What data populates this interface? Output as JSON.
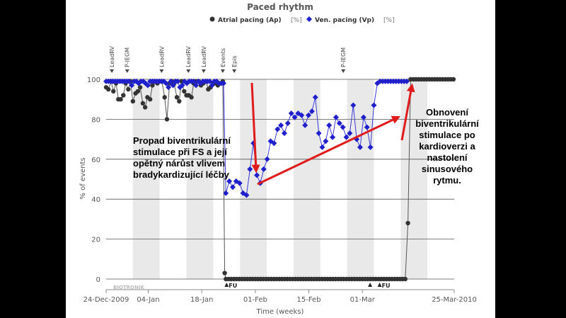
{
  "chart_data": {
    "type": "scatter",
    "title": "Paced rhythm",
    "ylabel": "% of events",
    "xlabel": "Time (weeks)",
    "ylim": [
      0,
      100
    ],
    "yticks": [
      0,
      20,
      40,
      60,
      80,
      100
    ],
    "x_start": "24-Dec-2009",
    "x_end": "25-Mar-2010",
    "x_ticks": [
      {
        "label": "24-Dec-2009",
        "day": 0
      },
      {
        "label": "04-Jan",
        "day": 11
      },
      {
        "label": "18-Jan",
        "day": 25
      },
      {
        "label": "01-Feb",
        "day": 39
      },
      {
        "label": "15-Feb",
        "day": 53
      },
      {
        "label": "01-Mar",
        "day": 67
      },
      {
        "label": "25-Mar-2010",
        "day": 91
      }
    ],
    "legend": {
      "placement": "top"
    },
    "series": [
      {
        "name": "Atrial pacing (Ap)",
        "unit": "[%]",
        "marker": "circle",
        "color": "#333333",
        "points": [
          [
            0.0,
            96
          ],
          [
            0.6,
            95
          ],
          [
            1.3,
            99
          ],
          [
            1.9,
            94
          ],
          [
            2.6,
            98
          ],
          [
            3.2,
            90
          ],
          [
            3.8,
            90
          ],
          [
            4.5,
            92
          ],
          [
            5.1,
            98
          ],
          [
            5.8,
            95
          ],
          [
            6.4,
            99
          ],
          [
            7.0,
            89
          ],
          [
            7.7,
            93
          ],
          [
            8.3,
            94
          ],
          [
            8.9,
            96
          ],
          [
            9.6,
            88
          ],
          [
            10.2,
            86
          ],
          [
            10.8,
            91
          ],
          [
            11.5,
            90
          ],
          [
            12.1,
            97
          ],
          [
            12.7,
            99
          ],
          [
            13.4,
            98
          ],
          [
            14.0,
            99
          ],
          [
            14.6,
            99
          ],
          [
            15.3,
            91
          ],
          [
            15.9,
            80
          ],
          [
            16.6,
            98
          ],
          [
            17.2,
            99
          ],
          [
            17.8,
            98
          ],
          [
            18.5,
            91
          ],
          [
            19.1,
            89
          ],
          [
            19.7,
            99
          ],
          [
            20.4,
            94
          ],
          [
            21.0,
            92
          ],
          [
            21.6,
            92
          ],
          [
            22.3,
            91
          ],
          [
            22.9,
            98
          ],
          [
            23.5,
            99
          ],
          [
            24.2,
            99
          ],
          [
            24.8,
            97
          ],
          [
            25.4,
            98
          ],
          [
            26.1,
            99
          ],
          [
            26.7,
            95
          ],
          [
            27.3,
            96
          ],
          [
            28.0,
            98
          ],
          [
            28.6,
            98
          ],
          [
            29.2,
            97
          ],
          [
            29.9,
            98
          ],
          [
            30.5,
            99
          ],
          [
            31.0,
            3
          ],
          [
            31.3,
            0
          ],
          [
            32.0,
            0
          ],
          [
            32.7,
            0
          ],
          [
            33.4,
            0
          ],
          [
            34.1,
            0
          ],
          [
            34.8,
            0
          ],
          [
            35.5,
            0
          ],
          [
            36.2,
            0
          ],
          [
            36.9,
            0
          ],
          [
            37.6,
            0
          ],
          [
            38.3,
            0
          ],
          [
            39.0,
            0
          ],
          [
            39.7,
            0
          ],
          [
            40.4,
            0
          ],
          [
            41.1,
            0
          ],
          [
            41.8,
            0
          ],
          [
            42.5,
            0
          ],
          [
            43.2,
            0
          ],
          [
            43.9,
            0
          ],
          [
            44.6,
            0
          ],
          [
            45.3,
            0
          ],
          [
            46.0,
            0
          ],
          [
            46.7,
            0
          ],
          [
            47.4,
            0
          ],
          [
            48.1,
            0
          ],
          [
            48.8,
            0
          ],
          [
            49.5,
            0
          ],
          [
            50.2,
            0
          ],
          [
            50.9,
            0
          ],
          [
            51.6,
            0
          ],
          [
            52.3,
            0
          ],
          [
            53.0,
            0
          ],
          [
            53.7,
            0
          ],
          [
            54.4,
            0
          ],
          [
            55.1,
            0
          ],
          [
            55.8,
            0
          ],
          [
            56.5,
            0
          ],
          [
            57.2,
            0
          ],
          [
            57.9,
            0
          ],
          [
            58.6,
            0
          ],
          [
            59.3,
            0
          ],
          [
            60.0,
            0
          ],
          [
            60.7,
            0
          ],
          [
            61.4,
            0
          ],
          [
            62.1,
            0
          ],
          [
            62.8,
            0
          ],
          [
            63.5,
            0
          ],
          [
            64.2,
            0
          ],
          [
            64.9,
            0
          ],
          [
            65.6,
            0
          ],
          [
            66.3,
            0
          ],
          [
            67.0,
            0
          ],
          [
            67.7,
            0
          ],
          [
            68.4,
            0
          ],
          [
            69.1,
            0
          ],
          [
            69.8,
            0
          ],
          [
            70.5,
            0
          ],
          [
            71.2,
            0
          ],
          [
            71.9,
            0
          ],
          [
            72.6,
            0
          ],
          [
            73.3,
            0
          ],
          [
            74.0,
            0
          ],
          [
            74.7,
            0
          ],
          [
            75.4,
            0
          ],
          [
            76.1,
            0
          ],
          [
            76.8,
            0
          ],
          [
            77.5,
            0
          ],
          [
            78.2,
            0
          ],
          [
            78.9,
            28
          ],
          [
            79.6,
            100
          ],
          [
            80.3,
            100
          ],
          [
            81.0,
            100
          ],
          [
            81.7,
            100
          ],
          [
            82.4,
            100
          ],
          [
            83.1,
            100
          ],
          [
            83.8,
            100
          ],
          [
            84.5,
            100
          ],
          [
            85.2,
            100
          ],
          [
            85.9,
            100
          ],
          [
            86.6,
            100
          ],
          [
            87.3,
            100
          ],
          [
            88.0,
            100
          ],
          [
            88.7,
            100
          ],
          [
            89.4,
            100
          ],
          [
            90.1,
            100
          ],
          [
            90.8,
            100
          ]
        ]
      },
      {
        "name": "Ven. pacing (Vp)",
        "unit": "[%]",
        "marker": "diamond",
        "color": "#1f1fcc",
        "points": [
          [
            0.0,
            99
          ],
          [
            0.6,
            99
          ],
          [
            1.2,
            99
          ],
          [
            1.8,
            99
          ],
          [
            2.4,
            99
          ],
          [
            3.0,
            99
          ],
          [
            3.6,
            99
          ],
          [
            4.2,
            99
          ],
          [
            4.8,
            99
          ],
          [
            5.4,
            99
          ],
          [
            6.0,
            99
          ],
          [
            6.7,
            97
          ],
          [
            7.3,
            99
          ],
          [
            7.9,
            99
          ],
          [
            8.5,
            98
          ],
          [
            9.1,
            99
          ],
          [
            9.7,
            99
          ],
          [
            10.3,
            98
          ],
          [
            10.9,
            97
          ],
          [
            11.5,
            99
          ],
          [
            12.1,
            99
          ],
          [
            12.7,
            99
          ],
          [
            13.3,
            99
          ],
          [
            13.9,
            99
          ],
          [
            14.5,
            99
          ],
          [
            15.1,
            99
          ],
          [
            15.7,
            98
          ],
          [
            16.3,
            96
          ],
          [
            16.9,
            99
          ],
          [
            17.5,
            97
          ],
          [
            18.1,
            99
          ],
          [
            18.7,
            99
          ],
          [
            19.3,
            96
          ],
          [
            19.9,
            97
          ],
          [
            20.5,
            99
          ],
          [
            21.1,
            98
          ],
          [
            21.7,
            99
          ],
          [
            22.3,
            99
          ],
          [
            22.9,
            99
          ],
          [
            23.5,
            97
          ],
          [
            24.1,
            99
          ],
          [
            24.7,
            98
          ],
          [
            25.3,
            99
          ],
          [
            25.9,
            99
          ],
          [
            26.5,
            99
          ],
          [
            27.1,
            99
          ],
          [
            27.7,
            97
          ],
          [
            28.3,
            99
          ],
          [
            28.9,
            99
          ],
          [
            29.5,
            98
          ],
          [
            30.1,
            98
          ],
          [
            30.7,
            98
          ],
          [
            31.3,
            43
          ],
          [
            32.2,
            49
          ],
          [
            33.1,
            46
          ],
          [
            34.0,
            49
          ],
          [
            34.9,
            48
          ],
          [
            35.8,
            43
          ],
          [
            36.7,
            42
          ],
          [
            37.6,
            55
          ],
          [
            38.5,
            68
          ],
          [
            39.4,
            52
          ],
          [
            40.3,
            48
          ],
          [
            41.2,
            55
          ],
          [
            42.1,
            60
          ],
          [
            43.0,
            69
          ],
          [
            43.9,
            68
          ],
          [
            44.8,
            75
          ],
          [
            45.7,
            77
          ],
          [
            46.6,
            73
          ],
          [
            47.5,
            78
          ],
          [
            48.4,
            83
          ],
          [
            49.3,
            81
          ],
          [
            50.2,
            83
          ],
          [
            51.1,
            82
          ],
          [
            52.0,
            77
          ],
          [
            52.9,
            82
          ],
          [
            53.8,
            84
          ],
          [
            54.7,
            91
          ],
          [
            55.6,
            73
          ],
          [
            56.5,
            66
          ],
          [
            57.4,
            69
          ],
          [
            58.3,
            77
          ],
          [
            59.2,
            71
          ],
          [
            60.1,
            81
          ],
          [
            61.0,
            78
          ],
          [
            61.9,
            76
          ],
          [
            62.8,
            71
          ],
          [
            63.7,
            73
          ],
          [
            64.6,
            87
          ],
          [
            65.5,
            70
          ],
          [
            66.4,
            66
          ],
          [
            67.3,
            81
          ],
          [
            68.2,
            76
          ],
          [
            69.1,
            66
          ],
          [
            70.0,
            87
          ],
          [
            70.9,
            98
          ],
          [
            71.6,
            99
          ],
          [
            72.3,
            99
          ],
          [
            73.0,
            99
          ],
          [
            73.7,
            99
          ],
          [
            74.4,
            99
          ],
          [
            75.1,
            99
          ],
          [
            75.8,
            99
          ],
          [
            76.5,
            99
          ],
          [
            77.2,
            99
          ],
          [
            77.9,
            99
          ],
          [
            78.6,
            99
          ]
        ]
      }
    ],
    "event_markers": [
      {
        "label": "LeadRV",
        "day": 1.5
      },
      {
        "label": "P-IEGM",
        "day": 5.5
      },
      {
        "label": "LeadRV",
        "day": 14.5
      },
      {
        "label": "LeadRV",
        "day": 21.5
      },
      {
        "label": "LeadRV",
        "day": 25.5
      },
      {
        "label": "Events",
        "day": 30.5
      },
      {
        "label": "Epis",
        "day": 33.5
      },
      {
        "label": "P-IEGM",
        "day": 62.0
      }
    ],
    "fu_markers": [
      {
        "label": "FU",
        "day": 31.5
      },
      {
        "label": "",
        "day": 69.0
      },
      {
        "label": "FU",
        "day": 71.5
      }
    ],
    "watermark": "BIOTRONIK"
  },
  "annotations": {
    "left_lines": [
      "Propad biventrikulární",
      "stimulace při FS a její",
      "opětný nárůst vlivem",
      "bradykardizující léčby"
    ],
    "right_lines": [
      "Obnovení",
      "biventrikulární",
      "stimulace po",
      "kardioverzi a",
      "nastolení",
      "sinusového",
      "rytmu."
    ]
  }
}
